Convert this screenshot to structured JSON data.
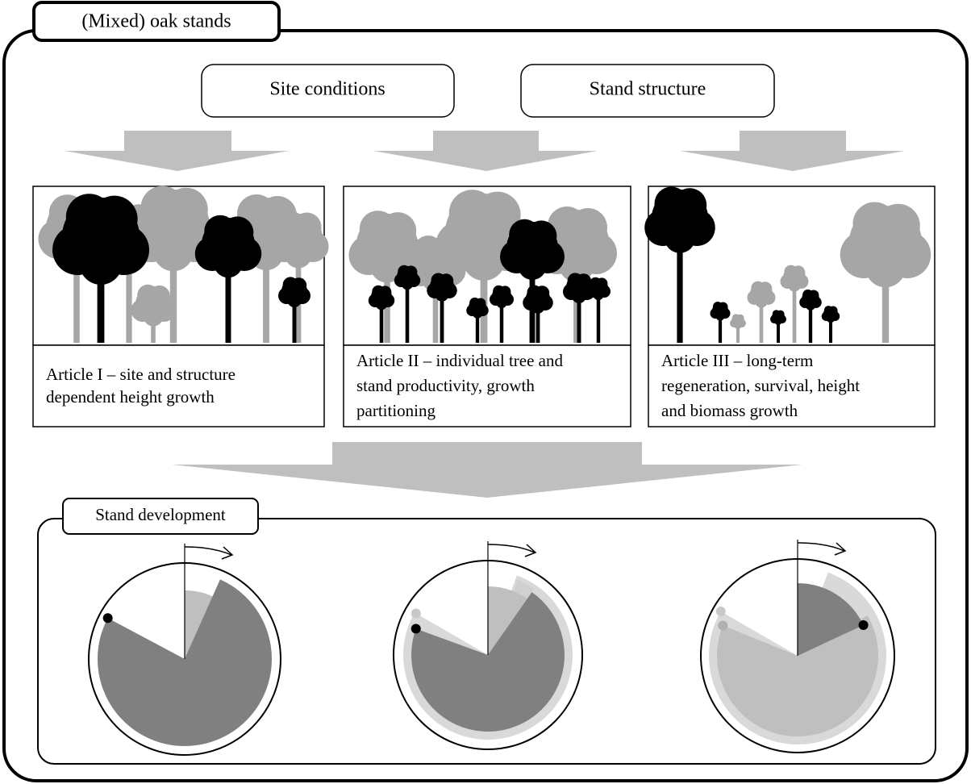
{
  "header": {
    "title": "(Mixed) oak stands"
  },
  "inputs": [
    "Site conditions",
    "Stand structure"
  ],
  "articles": [
    {
      "lines": [
        "Article I – site and structure",
        "dependent height growth"
      ]
    },
    {
      "lines": [
        "Article II – individual tree and",
        "stand  productivity, growth",
        "partitioning"
      ]
    },
    {
      "lines": [
        "Article III – long-term",
        "regeneration, survival, height",
        "and biomass growth"
      ]
    }
  ],
  "development": {
    "title": "Stand development"
  }
}
